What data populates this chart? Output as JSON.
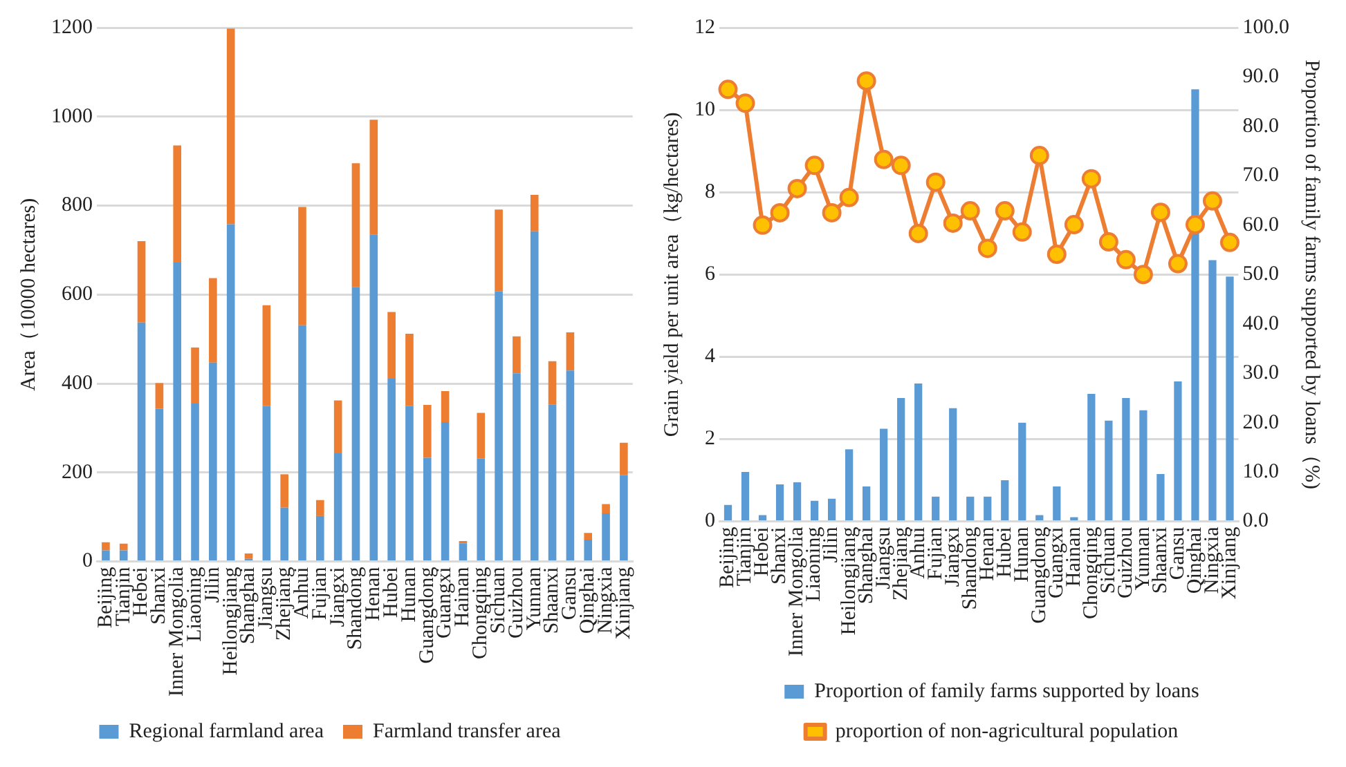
{
  "chart_data": [
    {
      "type": "bar",
      "stacked": true,
      "ylabel": "Area（10000 hectares)",
      "categories": [
        "Beijing",
        "Tianjin",
        "Hebei",
        "Shanxi",
        "Inner Mongolia",
        "Liaoning",
        "Jilin",
        "Heilongjiang",
        "Shanghai",
        "Jiangsu",
        "Zhejiang",
        "Anhui",
        "Fujian",
        "Jiangxi",
        "Shandong",
        "Henan",
        "Hubei",
        "Hunan",
        "Guangdong",
        "Guangxi",
        "Hainan",
        "Chongqing",
        "Sichuan",
        "Guizhou",
        "Yunnan",
        "Shaanxi",
        "Gansu",
        "Qinghai",
        "Ningxia",
        "Xinjiang"
      ],
      "series": [
        {
          "name": "Regional farmland area",
          "color": "#5b9bd5",
          "values": [
            25,
            25,
            537,
            343,
            672,
            355,
            447,
            758,
            6,
            349,
            121,
            531,
            102,
            243,
            617,
            735,
            411,
            349,
            233,
            313,
            41,
            231,
            607,
            423,
            742,
            353,
            429,
            49,
            108,
            194
          ]
        },
        {
          "name": "Farmland transfer area",
          "color": "#ed7d31",
          "values": [
            18,
            15,
            183,
            58,
            263,
            126,
            190,
            440,
            12,
            227,
            75,
            266,
            36,
            119,
            278,
            258,
            150,
            163,
            119,
            70,
            5,
            103,
            184,
            83,
            82,
            97,
            86,
            15,
            21,
            73
          ]
        }
      ],
      "ylim": [
        0,
        1200
      ],
      "yticks": [
        0,
        200,
        400,
        600,
        800,
        1000,
        1200
      ],
      "grid": "y",
      "legend": "bottom"
    },
    {
      "type": "bar",
      "ylabel": "Grain yield per unit area（kg/hectares)",
      "y2label": "Proportion of family farms supported by loans（%)",
      "categories": [
        "Beijing",
        "Tianjin",
        "Hebei",
        "Shanxi",
        "Inner Mongolia",
        "Liaoning",
        "Jilin",
        "Heilongjiang",
        "Shanghai",
        "Jiangsu",
        "Zhejiang",
        "Anhui",
        "Fujian",
        "Jiangxi",
        "Shandong",
        "Henan",
        "Hubei",
        "Hunan",
        "Guangdong",
        "Guangxi",
        "Hainan",
        "Chongqing",
        "Sichuan",
        "Guizhou",
        "Yunnan",
        "Shaanxi",
        "Gansu",
        "Qinghai",
        "Ningxia",
        "Xinjiang"
      ],
      "series": [
        {
          "name": "Proportion of family farms supported by loans",
          "type": "bar",
          "color": "#5b9bd5",
          "values": [
            0.4,
            1.2,
            0.15,
            0.9,
            0.95,
            0.5,
            0.55,
            1.75,
            0.85,
            2.25,
            3.0,
            3.35,
            0.6,
            2.75,
            0.6,
            0.6,
            1.0,
            2.4,
            0.15,
            0.85,
            0.1,
            3.1,
            2.45,
            3.0,
            2.7,
            1.15,
            3.4,
            10.5,
            6.35,
            5.95
          ]
        },
        {
          "name": "proportion of non-agricultural population",
          "type": "line",
          "axis": "y2",
          "color": "#ed7d31",
          "marker": "circle",
          "values": [
            87.5,
            84.7,
            60.0,
            62.5,
            67.4,
            72.1,
            62.5,
            65.6,
            89.2,
            73.3,
            72.1,
            58.3,
            68.7,
            60.4,
            62.9,
            55.3,
            62.9,
            58.6,
            74.1,
            54.1,
            60.1,
            69.4,
            56.6,
            53.0,
            50.0,
            62.6,
            52.2,
            60.1,
            64.9,
            56.5
          ]
        }
      ],
      "ylim": [
        0,
        12
      ],
      "yticks": [
        0,
        2,
        4,
        6,
        8,
        10,
        12
      ],
      "y2lim": [
        0,
        100
      ],
      "y2ticks": [
        {
          "value": 0,
          "label": "0.0"
        },
        {
          "value": 10,
          "label": "10.0"
        },
        {
          "value": 20,
          "label": "20.0"
        },
        {
          "value": 30,
          "label": "30.0"
        },
        {
          "value": 40,
          "label": "40.0"
        },
        {
          "value": 50,
          "label": "50.0"
        },
        {
          "value": 60,
          "label": "60.0"
        },
        {
          "value": 70,
          "label": "70.0"
        },
        {
          "value": 80,
          "label": "80.0"
        },
        {
          "value": 90,
          "label": "90.0"
        },
        {
          "value": 100,
          "label": "100.0"
        }
      ],
      "grid": "y",
      "legend": "bottom"
    }
  ]
}
